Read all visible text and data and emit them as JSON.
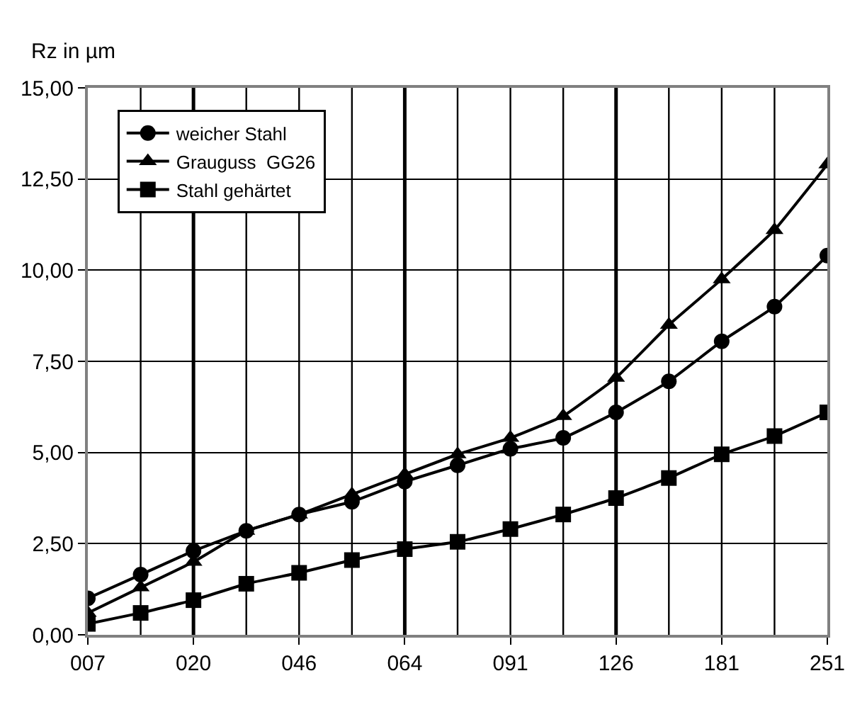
{
  "chart_data": {
    "type": "line",
    "ylabel": "Rz in µm",
    "categories": [
      "007",
      null,
      "020",
      null,
      "046",
      null,
      "064",
      null,
      "091",
      null,
      "126",
      null,
      "181",
      null,
      "251"
    ],
    "series": [
      {
        "name": "weicher Stahl",
        "color": "#000000",
        "marker": "circle",
        "values": [
          1.0,
          1.65,
          2.3,
          2.85,
          3.3,
          3.65,
          4.2,
          4.65,
          5.1,
          5.4,
          6.1,
          6.95,
          8.05,
          9.0,
          10.4
        ]
      },
      {
        "name": "Grauguss  GG26",
        "color": "#000000",
        "marker": "triangle",
        "values": [
          0.6,
          1.3,
          2.0,
          2.85,
          3.3,
          3.85,
          4.4,
          4.95,
          5.4,
          6.0,
          7.05,
          8.5,
          9.75,
          11.1,
          12.9
        ]
      },
      {
        "name": "Stahl gehärtet",
        "color": "#000000",
        "marker": "square",
        "values": [
          0.3,
          0.6,
          0.95,
          1.4,
          1.7,
          2.05,
          2.35,
          2.55,
          2.9,
          3.3,
          3.75,
          4.3,
          4.95,
          5.45,
          6.1
        ]
      }
    ],
    "ylim": [
      0,
      15
    ],
    "yticks": [
      {
        "value": 0,
        "label": "0,00"
      },
      {
        "value": 2.5,
        "label": "2,50"
      },
      {
        "value": 5,
        "label": "5,00"
      },
      {
        "value": 7.5,
        "label": "7,50"
      },
      {
        "value": 10,
        "label": "10,00"
      },
      {
        "value": 12.5,
        "label": "12,50"
      },
      {
        "value": 15,
        "label": "15,00"
      }
    ],
    "grid": true,
    "legend": "top left",
    "line_style": "solid"
  }
}
